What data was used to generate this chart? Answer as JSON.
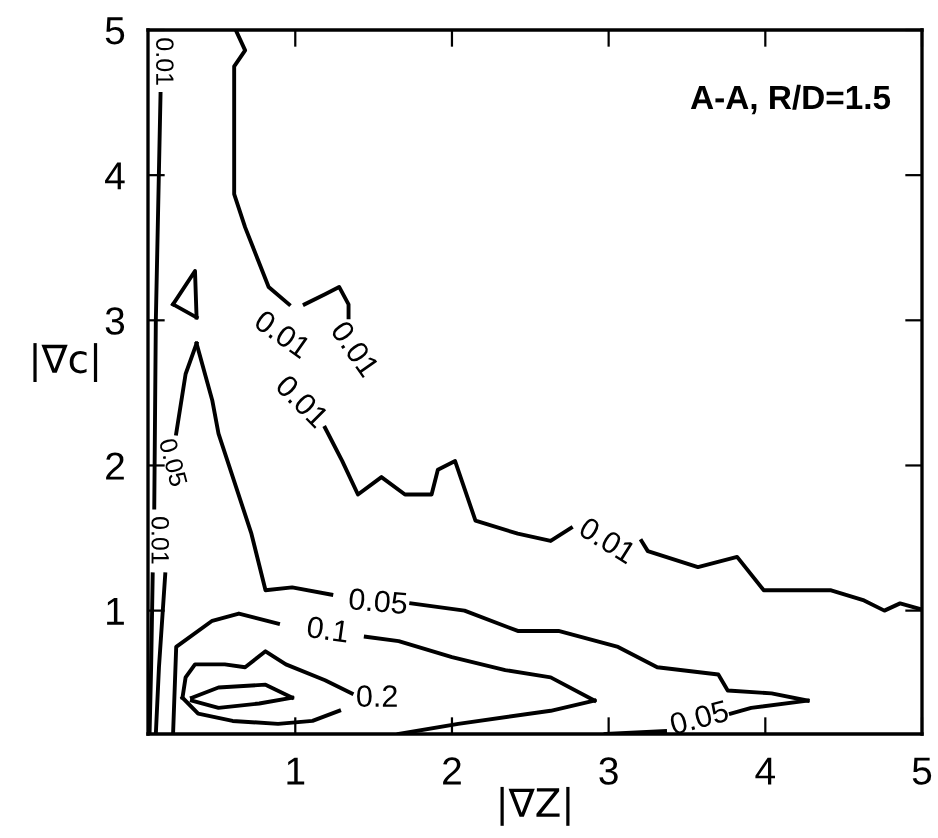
{
  "chart_data": {
    "type": "line",
    "xlabel": "|∇Z|",
    "ylabel": "|∇c|",
    "xlim": [
      0.06,
      5
    ],
    "ylim": [
      0.15,
      5
    ],
    "xticks": [
      1,
      2,
      3,
      4,
      5
    ],
    "yticks": [
      1,
      2,
      3,
      4,
      5
    ],
    "grid": false,
    "legend": false,
    "marker": "none",
    "line_style": "solid",
    "series": [
      {
        "color": "#000000",
        "x": [
          0.62,
          0.68,
          0.61,
          0.61,
          0.68,
          0.83,
          0.96
        ],
        "values": [
          5.0,
          4.86,
          4.75,
          3.87,
          3.64,
          3.23,
          3.11
        ]
      },
      {
        "color": "#000000",
        "x": [
          1.19,
          1.3,
          1.4,
          1.55,
          1.7,
          1.87,
          1.91,
          2.02,
          2.15,
          2.42,
          2.63,
          2.76
        ],
        "values": [
          2.26,
          2.03,
          1.8,
          1.92,
          1.8,
          1.8,
          1.97,
          2.03,
          1.62,
          1.53,
          1.48,
          1.57
        ]
      },
      {
        "color": "#000000",
        "x": [
          3.21,
          3.25,
          3.57,
          3.82,
          3.99,
          4.42,
          4.63,
          4.76,
          4.86,
          4.99
        ],
        "values": [
          1.48,
          1.41,
          1.3,
          1.37,
          1.14,
          1.14,
          1.07,
          1.0,
          1.05,
          1.01
        ]
      },
      {
        "color": "#000000",
        "x": [
          1.06,
          1.19,
          1.28,
          1.34,
          1.34
        ],
        "values": [
          3.11,
          3.18,
          3.23,
          3.11,
          3.02
        ]
      },
      {
        "color": "#000000",
        "x": [
          0.14,
          0.11,
          0.1
        ],
        "values": [
          4.56,
          3.0,
          1.71
        ]
      },
      {
        "color": "#000000",
        "x": [
          0.09,
          0.08,
          0.07
        ],
        "values": [
          1.25,
          0.61,
          0.15
        ]
      },
      {
        "color": "#000000",
        "x": [
          0.22,
          0.36,
          0.37
        ],
        "values": [
          3.11,
          3.34,
          3.02
        ]
      },
      {
        "color": "#000000",
        "x": [
          0.22,
          0.37
        ],
        "values": [
          3.11,
          3.02
        ]
      },
      {
        "color": "#000000",
        "x": [
          0.11,
          0.13,
          0.17
        ],
        "values": [
          0.15,
          0.61,
          1.25
        ]
      },
      {
        "color": "#000000",
        "x": [
          0.24,
          0.3,
          0.37
        ],
        "values": [
          2.22,
          2.63,
          2.84
        ]
      },
      {
        "color": "#000000",
        "x": [
          0.37,
          0.47,
          0.51,
          0.72,
          0.81,
          0.98,
          1.23
        ],
        "values": [
          2.84,
          2.45,
          2.22,
          1.53,
          1.14,
          1.16,
          1.11
        ]
      },
      {
        "color": "#000000",
        "x": [
          1.74,
          2.08,
          2.42,
          2.68,
          3.06,
          3.31,
          3.7,
          3.76,
          4.04,
          4.27
        ],
        "values": [
          1.05,
          1.0,
          0.86,
          0.86,
          0.75,
          0.61,
          0.56,
          0.45,
          0.43,
          0.38
        ]
      },
      {
        "color": "#000000",
        "x": [
          3.78,
          3.91,
          4.27
        ],
        "values": [
          0.29,
          0.33,
          0.38
        ]
      },
      {
        "color": "#000000",
        "x": [
          2.98,
          3.36
        ],
        "values": [
          0.15,
          0.17
        ]
      },
      {
        "color": "#000000",
        "x": [
          0.22,
          0.24,
          0.47,
          0.64,
          0.89
        ],
        "values": [
          0.15,
          0.75,
          0.93,
          0.98,
          0.91
        ]
      },
      {
        "color": "#000000",
        "x": [
          1.45,
          1.66,
          2.0,
          2.34,
          2.63,
          2.91
        ],
        "values": [
          0.82,
          0.79,
          0.68,
          0.59,
          0.54,
          0.38
        ]
      },
      {
        "color": "#000000",
        "x": [
          1.66,
          2.04,
          2.63,
          2.91
        ],
        "values": [
          0.15,
          0.22,
          0.31,
          0.38
        ]
      },
      {
        "color": "#000000",
        "x": [
          0.28,
          0.3,
          0.36,
          0.55,
          0.68,
          0.81,
          0.94,
          1.19,
          1.36
        ],
        "values": [
          0.4,
          0.54,
          0.63,
          0.63,
          0.61,
          0.72,
          0.63,
          0.52,
          0.43
        ]
      },
      {
        "color": "#000000",
        "x": [
          0.28,
          0.38,
          0.6,
          0.89,
          1.11,
          1.28
        ],
        "values": [
          0.4,
          0.29,
          0.24,
          0.22,
          0.24,
          0.31
        ]
      },
      {
        "color": "#000000",
        "x": [
          0.34,
          0.51,
          0.81,
          0.98
        ],
        "values": [
          0.4,
          0.47,
          0.49,
          0.4
        ]
      },
      {
        "color": "#000000",
        "x": [
          0.34,
          0.51,
          0.77,
          0.98
        ],
        "values": [
          0.38,
          0.33,
          0.36,
          0.4
        ]
      }
    ],
    "annotations": [
      "A-A, R/D=1.5",
      "0.01",
      "0.01",
      "0.01",
      "0.01",
      "0.05",
      "0.1",
      "0.2",
      "0.05",
      "0.01",
      "0.01",
      "0.05"
    ]
  }
}
